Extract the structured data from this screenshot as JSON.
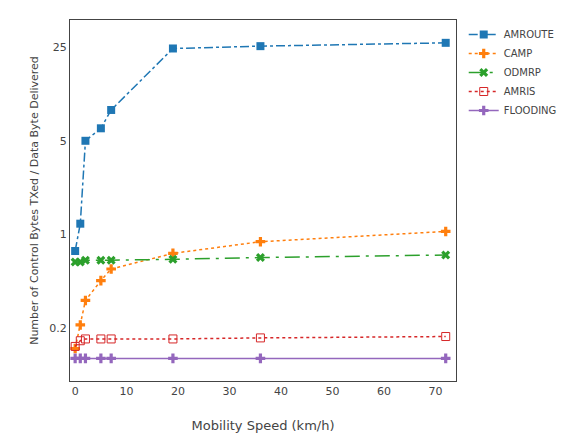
{
  "chart_data": {
    "type": "line",
    "xlabel": "Mobility Speed (km/h)",
    "ylabel": "Number of Control Bytes TXed / Data Byte Delivered",
    "x": [
      0,
      1,
      2,
      5,
      7,
      19,
      36,
      72
    ],
    "series": [
      {
        "name": "AMROUTE",
        "values": [
          0.75,
          1.2,
          5.0,
          6.2,
          8.5,
          24.5,
          25.5,
          27.0
        ],
        "marker": "square",
        "line_style": "dashdot"
      },
      {
        "name": "CAMP",
        "values": [
          0.14,
          0.21,
          0.32,
          0.45,
          0.55,
          0.72,
          0.88,
          1.05
        ],
        "marker": "plus",
        "line_style": "dotted"
      },
      {
        "name": "ODMRP",
        "values": [
          0.62,
          0.62,
          0.64,
          0.64,
          0.64,
          0.65,
          0.67,
          0.7
        ],
        "marker": "x",
        "line_style": "longdashdot"
      },
      {
        "name": "AMRIS",
        "values": [
          0.145,
          0.16,
          0.165,
          0.165,
          0.165,
          0.165,
          0.168,
          0.172
        ],
        "marker": "open_square",
        "line_style": "dotted"
      },
      {
        "name": "FLOODING",
        "values": [
          0.118,
          0.118,
          0.118,
          0.118,
          0.118,
          0.118,
          0.118,
          0.118
        ],
        "marker": "plus",
        "line_style": "solid"
      }
    ],
    "log": "y",
    "xlim": [
      -1,
      74
    ],
    "xticks": [
      0,
      10,
      20,
      30,
      40,
      50,
      60,
      70
    ],
    "ylim": [
      0.08,
      40.0
    ],
    "yticks": [
      0.2,
      1,
      5,
      25
    ],
    "grid": false,
    "legend": "upper right"
  }
}
